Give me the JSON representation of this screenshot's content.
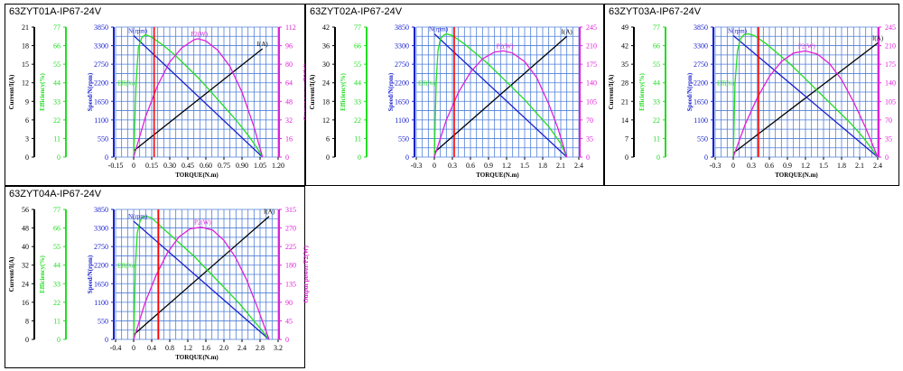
{
  "colors": {
    "grid": "#4f7fd8",
    "current": "#000000",
    "efficiency": "#22dd22",
    "speed": "#1a22cc",
    "power": "#e020d8",
    "marker": "#ff0000"
  },
  "chart_data": [
    {
      "type": "line",
      "title": "63ZYT01A-IP67-24V",
      "xlabel": "TORQUE(N.m)",
      "x_ticks": [
        "-0.15",
        "0",
        "0.15",
        "0.30",
        "0.45",
        "0.60",
        "0.75",
        "0.90",
        "1.05",
        "1.20"
      ],
      "xlim": [
        -0.15,
        1.2
      ],
      "marker_x": 0.17,
      "axes": {
        "current": {
          "label": "Current/I(A)",
          "ticks": [
            "0",
            "3",
            "6",
            "9",
            "12",
            "15",
            "18",
            "21"
          ],
          "max": 21
        },
        "efficiency": {
          "label": "Efficiency(%)",
          "ticks": [
            "0",
            "11",
            "22",
            "33",
            "44",
            "55",
            "66",
            "77"
          ],
          "max": 77
        },
        "speed": {
          "label": "Speed/N(rpm)",
          "ticks": [
            "0",
            "550",
            "1100",
            "1650",
            "2200",
            "2750",
            "3300",
            "3850"
          ],
          "max": 3850
        },
        "power": {
          "label": "Output power/P2(W)",
          "ticks": [
            "0",
            "16",
            "32",
            "48",
            "64",
            "80",
            "96",
            "112"
          ],
          "max": 112
        }
      },
      "series": [
        {
          "name": "I(A)",
          "key": "current",
          "x": [
            0,
            1.07
          ],
          "y": [
            1.0,
            17.5
          ]
        },
        {
          "name": "N(rpm)",
          "key": "speed",
          "x": [
            0,
            1.07
          ],
          "y": [
            3600,
            0
          ]
        },
        {
          "name": "Eff(%)",
          "key": "efficiency",
          "x": [
            0,
            0.02,
            0.04,
            0.07,
            0.1,
            0.15,
            0.25,
            0.35,
            0.45,
            0.55,
            0.65,
            0.75,
            0.85,
            0.95,
            1.02,
            1.07
          ],
          "y": [
            0,
            44,
            65,
            71,
            72.5,
            71,
            66,
            60,
            53,
            46,
            38,
            30,
            22,
            13,
            6,
            0
          ]
        },
        {
          "name": "P2(W)",
          "key": "power",
          "x": [
            0,
            0.1,
            0.2,
            0.3,
            0.4,
            0.5,
            0.535,
            0.6,
            0.7,
            0.8,
            0.9,
            1.0,
            1.07
          ],
          "y": [
            0,
            35,
            62,
            82,
            94,
            101,
            102,
            100,
            92,
            78,
            56,
            26,
            0
          ]
        }
      ],
      "labels": {
        "current": "I(A)",
        "speed": "N(rpm)",
        "power": "P2(W)",
        "efficiency": "Eff(%)"
      }
    },
    {
      "type": "line",
      "title": "63ZYT02A-IP67-24V",
      "xlabel": "TORQUE(N.m)",
      "x_ticks": [
        "-0.3",
        "0",
        "0.3",
        "0.6",
        "0.9",
        "1.2",
        "1.5",
        "1.8",
        "2.1",
        "2.4"
      ],
      "xlim": [
        -0.3,
        2.4
      ],
      "marker_x": 0.33,
      "axes": {
        "current": {
          "label": "Current/I(A)",
          "ticks": [
            "0",
            "6",
            "12",
            "18",
            "24",
            "30",
            "36",
            "42"
          ],
          "max": 42
        },
        "efficiency": {
          "label": "Efficiency(%)",
          "ticks": [
            "0",
            "11",
            "22",
            "33",
            "44",
            "55",
            "66",
            "77"
          ],
          "max": 77
        },
        "speed": {
          "label": "Speed/N(rpm)",
          "ticks": [
            "0",
            "550",
            "1100",
            "1650",
            "2200",
            "2750",
            "3300",
            "3850"
          ],
          "max": 3850
        },
        "power": {
          "label": "Output power/P2(W)",
          "ticks": [
            "0",
            "35",
            "70",
            "105",
            "140",
            "175",
            "210",
            "245"
          ],
          "max": 245
        }
      },
      "series": [
        {
          "name": "I(A)",
          "key": "current",
          "x": [
            0,
            2.2
          ],
          "y": [
            1.5,
            39
          ]
        },
        {
          "name": "N(rpm)",
          "key": "speed",
          "x": [
            0,
            2.2
          ],
          "y": [
            3650,
            0
          ]
        },
        {
          "name": "Eff(%)",
          "key": "efficiency",
          "x": [
            0,
            0.03,
            0.06,
            0.1,
            0.15,
            0.2,
            0.3,
            0.5,
            0.7,
            0.9,
            1.1,
            1.3,
            1.5,
            1.7,
            1.9,
            2.1,
            2.2
          ],
          "y": [
            0,
            44,
            63,
            70,
            72,
            73,
            72,
            67,
            61,
            55,
            48,
            41,
            34,
            26,
            18,
            8,
            0
          ]
        },
        {
          "name": "P2(W)",
          "key": "power",
          "x": [
            0,
            0.2,
            0.4,
            0.6,
            0.8,
            1.0,
            1.15,
            1.3,
            1.5,
            1.7,
            1.9,
            2.05,
            2.2
          ],
          "y": [
            0,
            70,
            122,
            160,
            185,
            198,
            200,
            196,
            180,
            150,
            100,
            55,
            0
          ]
        }
      ],
      "labels": {
        "current": "I(A)",
        "speed": "N(rpm)",
        "power": "P2(W)",
        "efficiency": "Eff(%)"
      }
    },
    {
      "type": "line",
      "title": "63ZYT03A-IP67-24V",
      "xlabel": "TORQUE(N.m)",
      "x_ticks": [
        "-0.3",
        "0",
        "0.3",
        "0.6",
        "0.9",
        "1.2",
        "1.5",
        "1.8",
        "2.1",
        "2.4"
      ],
      "xlim": [
        -0.3,
        2.4
      ],
      "marker_x": 0.42,
      "axes": {
        "current": {
          "label": "Current/I(A)",
          "ticks": [
            "0",
            "7",
            "14",
            "21",
            "28",
            "35",
            "42",
            "49"
          ],
          "max": 49
        },
        "efficiency": {
          "label": "Efficiency(%)",
          "ticks": [
            "0",
            "11",
            "22",
            "33",
            "44",
            "55",
            "66",
            "77"
          ],
          "max": 77
        },
        "speed": {
          "label": "Speed/N(rpm)",
          "ticks": [
            "0",
            "550",
            "1100",
            "1650",
            "2200",
            "2750",
            "3300",
            "3850"
          ],
          "max": 3850
        },
        "power": {
          "label": "Output power/P2(W)",
          "ticks": [
            "0",
            "35",
            "70",
            "105",
            "140",
            "175",
            "210",
            "245"
          ],
          "max": 245
        }
      },
      "series": [
        {
          "name": "I(A)",
          "key": "current",
          "x": [
            0,
            2.4
          ],
          "y": [
            1.5,
            43
          ]
        },
        {
          "name": "N(rpm)",
          "key": "speed",
          "x": [
            0,
            2.4
          ],
          "y": [
            3600,
            0
          ]
        },
        {
          "name": "Eff(%)",
          "key": "efficiency",
          "x": [
            0,
            0.03,
            0.07,
            0.12,
            0.18,
            0.25,
            0.35,
            0.55,
            0.75,
            0.95,
            1.15,
            1.35,
            1.55,
            1.75,
            1.95,
            2.15,
            2.3,
            2.4
          ],
          "y": [
            0,
            44,
            63,
            70,
            72.5,
            73,
            72,
            67,
            61,
            55,
            48,
            41,
            34,
            27,
            20,
            12,
            5,
            0
          ]
        },
        {
          "name": "P2(W)",
          "key": "power",
          "x": [
            0,
            0.2,
            0.4,
            0.6,
            0.8,
            1.0,
            1.2,
            1.4,
            1.6,
            1.8,
            2.0,
            2.2,
            2.4
          ],
          "y": [
            0,
            62,
            112,
            152,
            180,
            196,
            200,
            194,
            176,
            146,
            104,
            55,
            0
          ]
        }
      ],
      "labels": {
        "current": "I(A)",
        "speed": "N(rpm)",
        "power": "P2(W)",
        "efficiency": "Eff(%)"
      }
    },
    {
      "type": "line",
      "title": "63ZYT04A-IP67-24V",
      "xlabel": "TORQUE(N.m)",
      "x_ticks": [
        "-0.4",
        "0",
        "0.4",
        "0.8",
        "1.2",
        "1.6",
        "2.0",
        "2.4",
        "2.8",
        "3.2"
      ],
      "xlim": [
        -0.4,
        3.2
      ],
      "marker_x": 0.55,
      "axes": {
        "current": {
          "label": "Current/I(A)",
          "ticks": [
            "0",
            "8",
            "16",
            "24",
            "32",
            "40",
            "48",
            "56"
          ],
          "max": 56
        },
        "efficiency": {
          "label": "Efficiency(%)",
          "ticks": [
            "0",
            "11",
            "22",
            "33",
            "44",
            "55",
            "66",
            "77"
          ],
          "max": 77
        },
        "speed": {
          "label": "Speed/N(rpm)",
          "ticks": [
            "0",
            "550",
            "1100",
            "1650",
            "2200",
            "2750",
            "3300",
            "3850"
          ],
          "max": 3850
        },
        "power": {
          "label": "Output power/P2(W)",
          "ticks": [
            "0",
            "45",
            "90",
            "135",
            "180",
            "225",
            "270",
            "315"
          ],
          "max": 315
        }
      },
      "series": [
        {
          "name": "I(A)",
          "key": "current",
          "x": [
            0,
            3.0
          ],
          "y": [
            2,
            53
          ]
        },
        {
          "name": "N(rpm)",
          "key": "speed",
          "x": [
            0,
            3.0
          ],
          "y": [
            3500,
            0
          ]
        },
        {
          "name": "Eff(%)",
          "key": "efficiency",
          "x": [
            0,
            0.04,
            0.08,
            0.14,
            0.2,
            0.28,
            0.4,
            0.6,
            0.85,
            1.1,
            1.35,
            1.6,
            1.85,
            2.1,
            2.35,
            2.6,
            2.85,
            3.0
          ],
          "y": [
            0,
            44,
            63,
            70,
            72.5,
            73,
            72,
            67,
            61,
            55,
            49,
            42,
            35,
            28,
            21,
            13,
            5,
            0
          ]
        },
        {
          "name": "P2(W)",
          "key": "power",
          "x": [
            0,
            0.25,
            0.5,
            0.75,
            1.0,
            1.25,
            1.5,
            1.75,
            2.0,
            2.25,
            2.5,
            2.75,
            3.0
          ],
          "y": [
            0,
            88,
            156,
            210,
            248,
            268,
            272,
            265,
            240,
            200,
            145,
            75,
            0
          ]
        }
      ],
      "labels": {
        "current": "I(A)",
        "speed": "N(rpm)",
        "power": "P2(W)",
        "efficiency": "Eff(%)"
      }
    }
  ]
}
